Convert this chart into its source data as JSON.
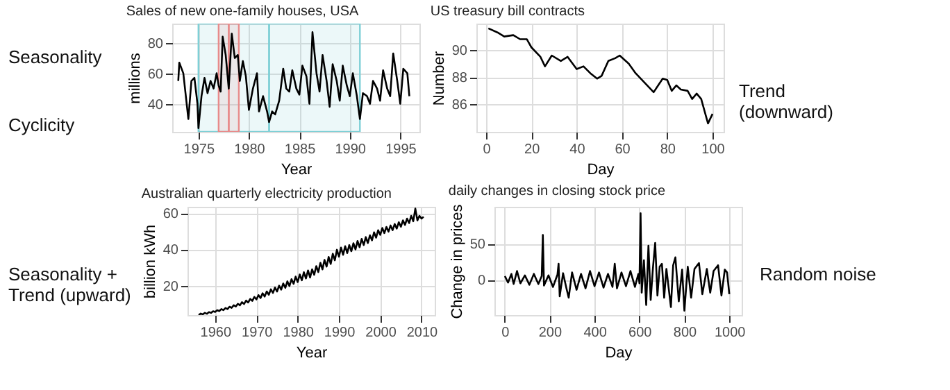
{
  "chart_data": [
    {
      "type": "line",
      "title": "Sales of new one-family houses, USA",
      "xlabel": "Year",
      "ylabel": "millions",
      "xlim": [
        1972.4,
        1996.9
      ],
      "xticks": [
        1975,
        1980,
        1985,
        1990,
        1995
      ],
      "ylim": [
        21.6,
        92.6
      ],
      "yticks": [
        40,
        60,
        80
      ],
      "grid": true,
      "annotations": [
        "Seasonality",
        "Cyclicity"
      ],
      "bands": [
        {
          "axis": "x",
          "from": 1975,
          "to": 1982,
          "color": "#7fd0d6"
        },
        {
          "axis": "x",
          "from": 1982,
          "to": 1991,
          "color": "#7fd0d6"
        },
        {
          "axis": "x",
          "from": 1977,
          "to": 1978,
          "color": "#e88b8b"
        },
        {
          "axis": "x",
          "from": 1978,
          "to": 1979,
          "color": "#e88b8b"
        }
      ],
      "x": [
        1973.0,
        1973.1,
        1973.5,
        1974.0,
        1974.3,
        1974.6,
        1974.9,
        1975.0,
        1975.3,
        1975.6,
        1975.9,
        1976.2,
        1976.5,
        1976.8,
        1977.0,
        1977.2,
        1977.4,
        1977.7,
        1978.0,
        1978.3,
        1978.6,
        1978.9,
        1979.1,
        1979.4,
        1979.7,
        1980.0,
        1980.4,
        1980.8,
        1981.0,
        1981.4,
        1981.8,
        1982.0,
        1982.3,
        1982.6,
        1983.0,
        1983.4,
        1983.7,
        1984.0,
        1984.3,
        1984.7,
        1985.0,
        1985.3,
        1985.7,
        1986.0,
        1986.3,
        1986.7,
        1987.0,
        1987.3,
        1987.7,
        1988.0,
        1988.3,
        1988.7,
        1989.0,
        1989.3,
        1989.7,
        1990.0,
        1990.3,
        1990.7,
        1991.0,
        1991.3,
        1991.7,
        1992.0,
        1992.3,
        1992.7,
        1993.0,
        1993.3,
        1993.7,
        1994.0,
        1994.3,
        1994.7,
        1995.0,
        1995.3,
        1995.7,
        1995.9
      ],
      "series": [
        {
          "color": "#000000",
          "values": [
            55,
            67,
            60,
            30,
            55,
            57,
            40,
            24,
            45,
            57,
            47,
            55,
            50,
            60,
            52,
            48,
            84,
            72,
            50,
            86,
            70,
            72,
            55,
            68,
            58,
            36,
            50,
            60,
            35,
            45,
            35,
            28,
            35,
            33,
            42,
            63,
            50,
            48,
            62,
            50,
            46,
            65,
            58,
            40,
            87,
            60,
            48,
            72,
            55,
            38,
            66,
            55,
            42,
            65,
            52,
            45,
            60,
            45,
            30,
            47,
            45,
            40,
            55,
            50,
            42,
            62,
            50,
            45,
            73,
            55,
            40,
            63,
            60,
            45
          ]
        }
      ]
    },
    {
      "type": "line",
      "title": "US treasury bill contracts",
      "xlabel": "Day",
      "ylabel": "Number",
      "xlim": [
        -4.3,
        104.9
      ],
      "xticks": [
        0,
        20,
        40,
        60,
        80,
        100
      ],
      "ylim": [
        83.98,
        91.95
      ],
      "yticks": [
        86,
        88,
        90
      ],
      "grid": true,
      "annotations": [
        "Trend\n(downward)"
      ],
      "x": [
        1,
        5,
        8,
        12,
        15,
        18,
        20,
        24,
        26,
        29,
        33,
        36,
        40,
        43,
        46,
        49,
        51,
        54,
        57,
        59,
        63,
        66,
        70,
        74,
        76,
        78,
        80,
        82,
        84,
        86,
        89,
        91,
        93,
        95,
        97,
        98,
        100
      ],
      "series": [
        {
          "color": "#000000",
          "values": [
            91.6,
            91.3,
            91.0,
            91.1,
            90.8,
            90.8,
            90.2,
            89.5,
            88.8,
            89.6,
            89.2,
            89.5,
            88.6,
            88.8,
            88.3,
            87.9,
            88.1,
            89.2,
            89.4,
            89.6,
            89.0,
            88.3,
            87.6,
            86.9,
            87.4,
            87.9,
            87.8,
            87.0,
            87.4,
            87.1,
            87.0,
            86.4,
            86.8,
            86.4,
            85.2,
            84.6,
            85.3
          ]
        }
      ]
    },
    {
      "type": "line",
      "title": "Australian quarterly electricity production",
      "xlabel": "Year",
      "ylabel": "billion kWh",
      "xlim": [
        1953.3,
        2013.2
      ],
      "xticks": [
        1960,
        1970,
        1980,
        1990,
        2000,
        2010
      ],
      "ylim": [
        3.8,
        63.5
      ],
      "yticks": [
        20,
        40,
        60
      ],
      "grid": true,
      "annotations": [
        "Seasonality +\nTrend (upward)"
      ],
      "x": [
        1956.0,
        1956.5,
        1957.0,
        1957.5,
        1958.0,
        1958.5,
        1959.0,
        1959.5,
        1960.0,
        1960.5,
        1961.0,
        1961.5,
        1962.0,
        1962.5,
        1963.0,
        1963.5,
        1964.0,
        1964.5,
        1965.0,
        1965.5,
        1966.0,
        1966.5,
        1967.0,
        1967.5,
        1968.0,
        1968.5,
        1969.0,
        1969.5,
        1970.0,
        1970.5,
        1971.0,
        1971.5,
        1972.0,
        1972.5,
        1973.0,
        1973.5,
        1974.0,
        1974.5,
        1975.0,
        1975.5,
        1976.0,
        1976.5,
        1977.0,
        1977.5,
        1978.0,
        1978.5,
        1979.0,
        1979.5,
        1980.0,
        1980.5,
        1981.0,
        1981.5,
        1982.0,
        1982.5,
        1983.0,
        1983.5,
        1984.0,
        1984.5,
        1985.0,
        1985.5,
        1986.0,
        1986.5,
        1987.0,
        1987.5,
        1988.0,
        1988.5,
        1989.0,
        1989.5,
        1990.0,
        1990.5,
        1991.0,
        1991.5,
        1992.0,
        1992.5,
        1993.0,
        1993.5,
        1994.0,
        1994.5,
        1995.0,
        1995.5,
        1996.0,
        1996.5,
        1997.0,
        1997.5,
        1998.0,
        1998.5,
        1999.0,
        1999.5,
        2000.0,
        2000.5,
        2001.0,
        2001.5,
        2002.0,
        2002.5,
        2003.0,
        2003.5,
        2004.0,
        2004.5,
        2005.0,
        2005.5,
        2006.0,
        2006.5,
        2007.0,
        2007.5,
        2008.0,
        2008.5,
        2009.0,
        2009.5,
        2010.0,
        2010.5
      ],
      "series": [
        {
          "color": "#000000",
          "values": [
            3.8,
            4.6,
            4.2,
            5.0,
            4.5,
            5.4,
            5.0,
            5.9,
            5.5,
            6.5,
            6.0,
            7.1,
            6.5,
            7.7,
            7.1,
            8.4,
            7.8,
            9.2,
            8.5,
            10.0,
            9.2,
            10.9,
            9.9,
            11.8,
            10.7,
            12.7,
            11.6,
            13.8,
            12.4,
            14.8,
            13.2,
            15.8,
            14.0,
            16.8,
            15.0,
            18.0,
            16.0,
            19.0,
            16.8,
            20.0,
            17.8,
            21.2,
            18.8,
            22.4,
            19.8,
            23.6,
            21.0,
            25.0,
            22.0,
            26.2,
            23.0,
            27.4,
            24.0,
            28.4,
            24.5,
            29.0,
            26.0,
            30.8,
            27.5,
            32.6,
            29.0,
            34.2,
            30.5,
            35.8,
            32.0,
            37.6,
            34.0,
            39.8,
            36.0,
            41.0,
            37.0,
            41.8,
            38.0,
            42.4,
            39.0,
            43.4,
            40.0,
            44.6,
            41.2,
            45.8,
            42.4,
            46.8,
            43.5,
            47.8,
            45.0,
            49.4,
            46.5,
            50.6,
            48.0,
            51.8,
            49.0,
            52.4,
            49.8,
            53.2,
            50.6,
            54.0,
            51.5,
            55.0,
            52.5,
            56.0,
            53.5,
            57.0,
            54.5,
            58.5,
            55.5,
            62.5,
            56.0,
            58.5,
            57.0,
            58.0
          ]
        }
      ]
    },
    {
      "type": "line",
      "title": "daily changes in closing stock price",
      "xlabel": "Day",
      "ylabel": "Change in prices",
      "xlim": [
        -45.5,
        1055
      ],
      "xticks": [
        0,
        200,
        400,
        600,
        800,
        1000
      ],
      "ylim": [
        -49,
        101
      ],
      "yticks": [
        0,
        50
      ],
      "grid": true,
      "annotations": [
        "Random noise"
      ],
      "x": [
        1,
        15,
        30,
        40,
        55,
        70,
        90,
        110,
        130,
        150,
        165,
        170,
        175,
        195,
        215,
        235,
        240,
        245,
        260,
        275,
        285,
        300,
        320,
        340,
        360,
        380,
        400,
        420,
        440,
        460,
        480,
        490,
        500,
        520,
        540,
        560,
        580,
        595,
        600,
        605,
        610,
        620,
        630,
        640,
        650,
        660,
        670,
        680,
        690,
        700,
        710,
        720,
        740,
        750,
        760,
        775,
        790,
        800,
        815,
        830,
        845,
        865,
        880,
        900,
        915,
        930,
        950,
        965,
        980,
        990,
        1000
      ],
      "series": [
        {
          "color": "#000000",
          "values": [
            5,
            -4,
            8,
            -6,
            12,
            -5,
            6,
            -7,
            8,
            -6,
            5,
            62,
            -8,
            6,
            -10,
            7,
            22,
            -23,
            9,
            -12,
            -25,
            10,
            -14,
            8,
            -12,
            12,
            -9,
            10,
            -11,
            8,
            -10,
            22,
            -12,
            10,
            -9,
            12,
            -10,
            8,
            -5,
            92,
            -18,
            27,
            -35,
            47,
            -28,
            16,
            51,
            -22,
            18,
            22,
            -25,
            15,
            -38,
            20,
            31,
            -30,
            14,
            -43,
            18,
            -25,
            15,
            23,
            -20,
            15,
            -18,
            12,
            20,
            -22,
            14,
            10,
            -20
          ]
        }
      ]
    }
  ]
}
